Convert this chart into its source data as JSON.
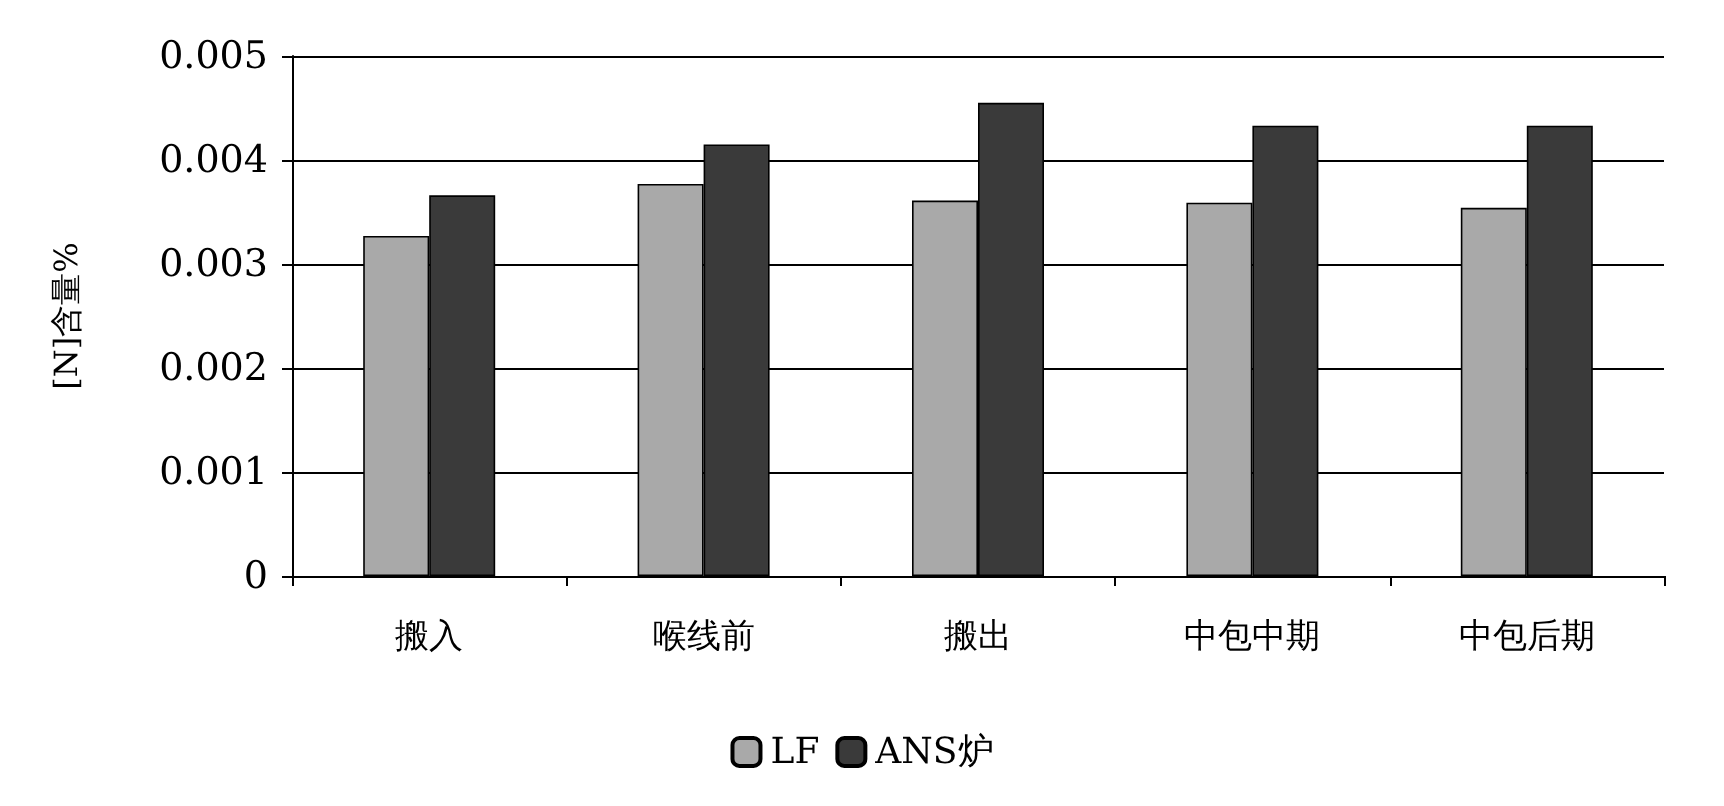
{
  "chart_data": {
    "type": "bar",
    "ylabel": "[N]含量%",
    "categories": [
      "搬入",
      "喉线前",
      "搬出",
      "中包中期",
      "中包后期"
    ],
    "series": [
      {
        "name": "LF",
        "color": "#a9a9a9",
        "values": [
          0.00327,
          0.00377,
          0.00361,
          0.00359,
          0.00354
        ]
      },
      {
        "name": "ANS炉",
        "color": "#3a3a3a",
        "values": [
          0.00366,
          0.00415,
          0.00455,
          0.00433,
          0.00433
        ]
      }
    ],
    "ylim": [
      0,
      0.005
    ],
    "yticks": [
      0,
      0.001,
      0.002,
      0.003,
      0.004,
      0.005
    ],
    "grid": "y",
    "legend": "bottom"
  }
}
